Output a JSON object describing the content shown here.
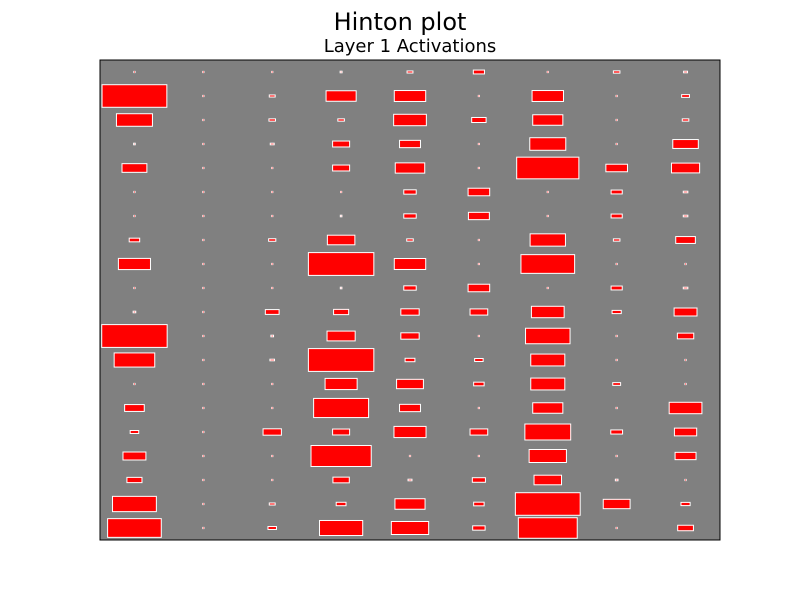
{
  "chart_data": {
    "type": "hinton",
    "title": "Hinton plot",
    "subtitle": "Layer 1 Activations",
    "xlabel": "",
    "ylabel": "",
    "grid": false,
    "legend": "none",
    "colors": {
      "background": "#808080",
      "positive": "#ff0000",
      "edge": "#ffffff",
      "frame": "#000000"
    },
    "n_rows": 20,
    "n_cols": 9,
    "values": [
      [
        0.01,
        0.01,
        0.01,
        0.03,
        0.09,
        0.17,
        0.01,
        0.1,
        0.06
      ],
      [
        0.99,
        0.0,
        0.09,
        0.46,
        0.48,
        0.0,
        0.48,
        0.0,
        0.12
      ],
      [
        0.55,
        0.0,
        0.1,
        0.1,
        0.5,
        0.22,
        0.46,
        0.0,
        0.1
      ],
      [
        0.02,
        0.0,
        0.06,
        0.26,
        0.32,
        0.0,
        0.55,
        0.0,
        0.39
      ],
      [
        0.38,
        0.01,
        0.01,
        0.26,
        0.45,
        0.01,
        0.95,
        0.33,
        0.43
      ],
      [
        0.0,
        0.0,
        0.0,
        0.01,
        0.19,
        0.33,
        0.0,
        0.17,
        0.07
      ],
      [
        0.01,
        0.01,
        0.01,
        0.02,
        0.19,
        0.32,
        0.01,
        0.17,
        0.07
      ],
      [
        0.16,
        0.0,
        0.11,
        0.42,
        0.1,
        0.0,
        0.54,
        0.1,
        0.3
      ],
      [
        0.49,
        0.01,
        0.0,
        1.0,
        0.48,
        0.01,
        0.82,
        0.0,
        0.0
      ],
      [
        0.0,
        0.0,
        0.0,
        0.02,
        0.19,
        0.33,
        0.0,
        0.17,
        0.07
      ],
      [
        0.04,
        0.0,
        0.21,
        0.23,
        0.28,
        0.27,
        0.5,
        0.14,
        0.35
      ],
      [
        1.0,
        0.0,
        0.04,
        0.43,
        0.28,
        0.0,
        0.68,
        0.0,
        0.25
      ],
      [
        0.62,
        0.01,
        0.07,
        1.0,
        0.15,
        0.13,
        0.52,
        0.0,
        0.0
      ],
      [
        0.0,
        0.0,
        0.0,
        0.49,
        0.41,
        0.16,
        0.52,
        0.12,
        0.0
      ],
      [
        0.3,
        0.01,
        0.01,
        0.84,
        0.32,
        0.01,
        0.46,
        0.0,
        0.5
      ],
      [
        0.13,
        0.0,
        0.28,
        0.26,
        0.49,
        0.27,
        0.7,
        0.18,
        0.34
      ],
      [
        0.35,
        0.0,
        0.0,
        0.92,
        0.0,
        0.0,
        0.57,
        0.0,
        0.32
      ],
      [
        0.23,
        0.0,
        0.0,
        0.25,
        0.06,
        0.2,
        0.42,
        0.04,
        0.0
      ],
      [
        0.67,
        0.0,
        0.09,
        0.15,
        0.46,
        0.16,
        0.99,
        0.41,
        0.14
      ],
      [
        0.82,
        0.0,
        0.13,
        0.66,
        0.57,
        0.19,
        0.9,
        0.0,
        0.24
      ]
    ]
  }
}
